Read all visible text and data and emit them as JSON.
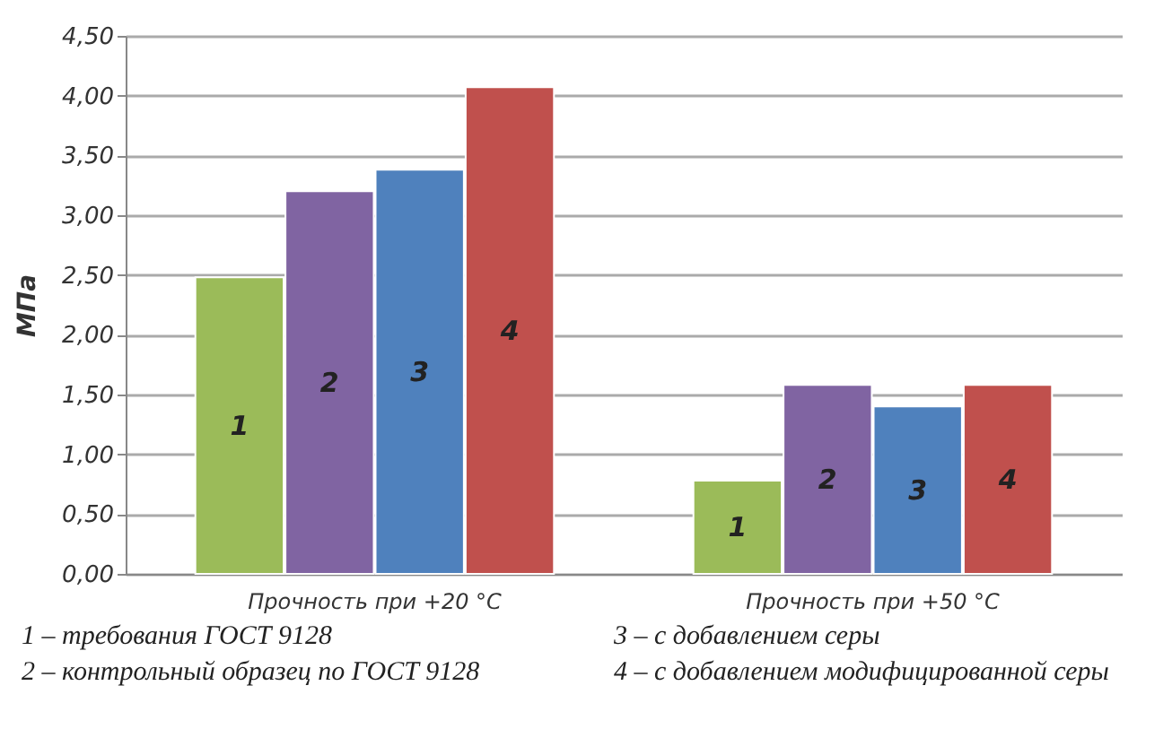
{
  "chart_data": {
    "type": "bar",
    "ylabel": "МПа",
    "categories": [
      "Прочность  при  +20 °С",
      "Прочность  при  +50 °С"
    ],
    "series": [
      {
        "name": "1",
        "color": "#9bbb59",
        "values": [
          2.48,
          0.78
        ]
      },
      {
        "name": "2",
        "color": "#8064a2",
        "values": [
          3.2,
          1.58
        ]
      },
      {
        "name": "3",
        "color": "#4f81bd",
        "values": [
          3.38,
          1.4
        ]
      },
      {
        "name": "4",
        "color": "#c0504d",
        "values": [
          4.07,
          1.58
        ]
      }
    ],
    "ylim": [
      0,
      4.5
    ],
    "yticks": [
      {
        "value": 0,
        "label": "0,00"
      },
      {
        "value": 0.5,
        "label": "0,50"
      },
      {
        "value": 1,
        "label": "1,00"
      },
      {
        "value": 1.5,
        "label": "1,50"
      },
      {
        "value": 2,
        "label": "2,00"
      },
      {
        "value": 2.5,
        "label": "2,50"
      },
      {
        "value": 3,
        "label": "3,00"
      },
      {
        "value": 3.5,
        "label": "3,50"
      },
      {
        "value": 4,
        "label": "4,00"
      },
      {
        "value": 4.5,
        "label": "4,50"
      }
    ],
    "grid": "y",
    "annotations": [
      "1 – требования ГОСТ 9128",
      "2 – контрольный образец по ГОСТ 9128",
      "3 – с добавлением серы",
      "4 – с добавлением модифицированной серы"
    ]
  }
}
